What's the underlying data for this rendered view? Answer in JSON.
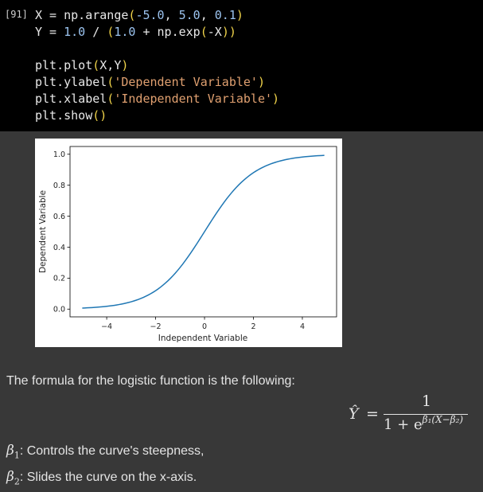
{
  "cell": {
    "execution_count": "[91]",
    "code": {
      "l1": [
        "X",
        " = ",
        "np.arange",
        "(",
        "-5.0",
        ", ",
        "5.0",
        ", ",
        "0.1",
        ")"
      ],
      "l2": [
        "Y",
        " = ",
        "1.0",
        " / ",
        "(",
        "1.0",
        " + ",
        "np.exp",
        "(",
        "-X",
        ")",
        ")"
      ],
      "l3": [
        "plt.plot",
        "(",
        "X,Y",
        ")"
      ],
      "l4": [
        "plt.ylabel",
        "(",
        "'Dependent Variable'",
        ")"
      ],
      "l5": [
        "plt.xlabel",
        "(",
        "'Independent Variable'",
        ")"
      ],
      "l6": [
        "plt.show",
        "()"
      ]
    }
  },
  "chart_data": {
    "type": "line",
    "function": "1 / (1 + exp(-x))",
    "x_start": -5.0,
    "x_stop": 5.0,
    "x_step": 0.1,
    "xlabel": "Independent Variable",
    "ylabel": "Dependent Variable",
    "xlim": [
      -5.5,
      5.4
    ],
    "ylim": [
      -0.05,
      1.05
    ],
    "xticks": [
      -4,
      -2,
      0,
      2,
      4
    ],
    "yticks": [
      0.0,
      0.2,
      0.4,
      0.6,
      0.8,
      1.0
    ],
    "xtick_labels": [
      "−4",
      "−2",
      "0",
      "2",
      "4"
    ],
    "ytick_labels": [
      "0.0",
      "0.2",
      "0.4",
      "0.6",
      "0.8",
      "1.0"
    ],
    "line_color": "#1f77b4",
    "grid": false
  },
  "markdown": {
    "intro": "The formula for the logistic function is the following:",
    "formula": {
      "lhs": "Ŷ",
      "eq": "=",
      "numerator": "1",
      "denominator_base": "1 + e",
      "denominator_exponent": "β₁(X−β₂)"
    },
    "beta1": {
      "symbol": "β",
      "sub": "1",
      "text": ": Controls the curve's steepness,"
    },
    "beta2": {
      "symbol": "β",
      "sub": "2",
      "text": ": Slides the curve on the x-axis."
    }
  },
  "colors": {
    "code_bg": "#000000",
    "output_bg": "#383838",
    "number": "#9cc4f0",
    "string": "#e0a070",
    "paren": "#f1d44a"
  }
}
